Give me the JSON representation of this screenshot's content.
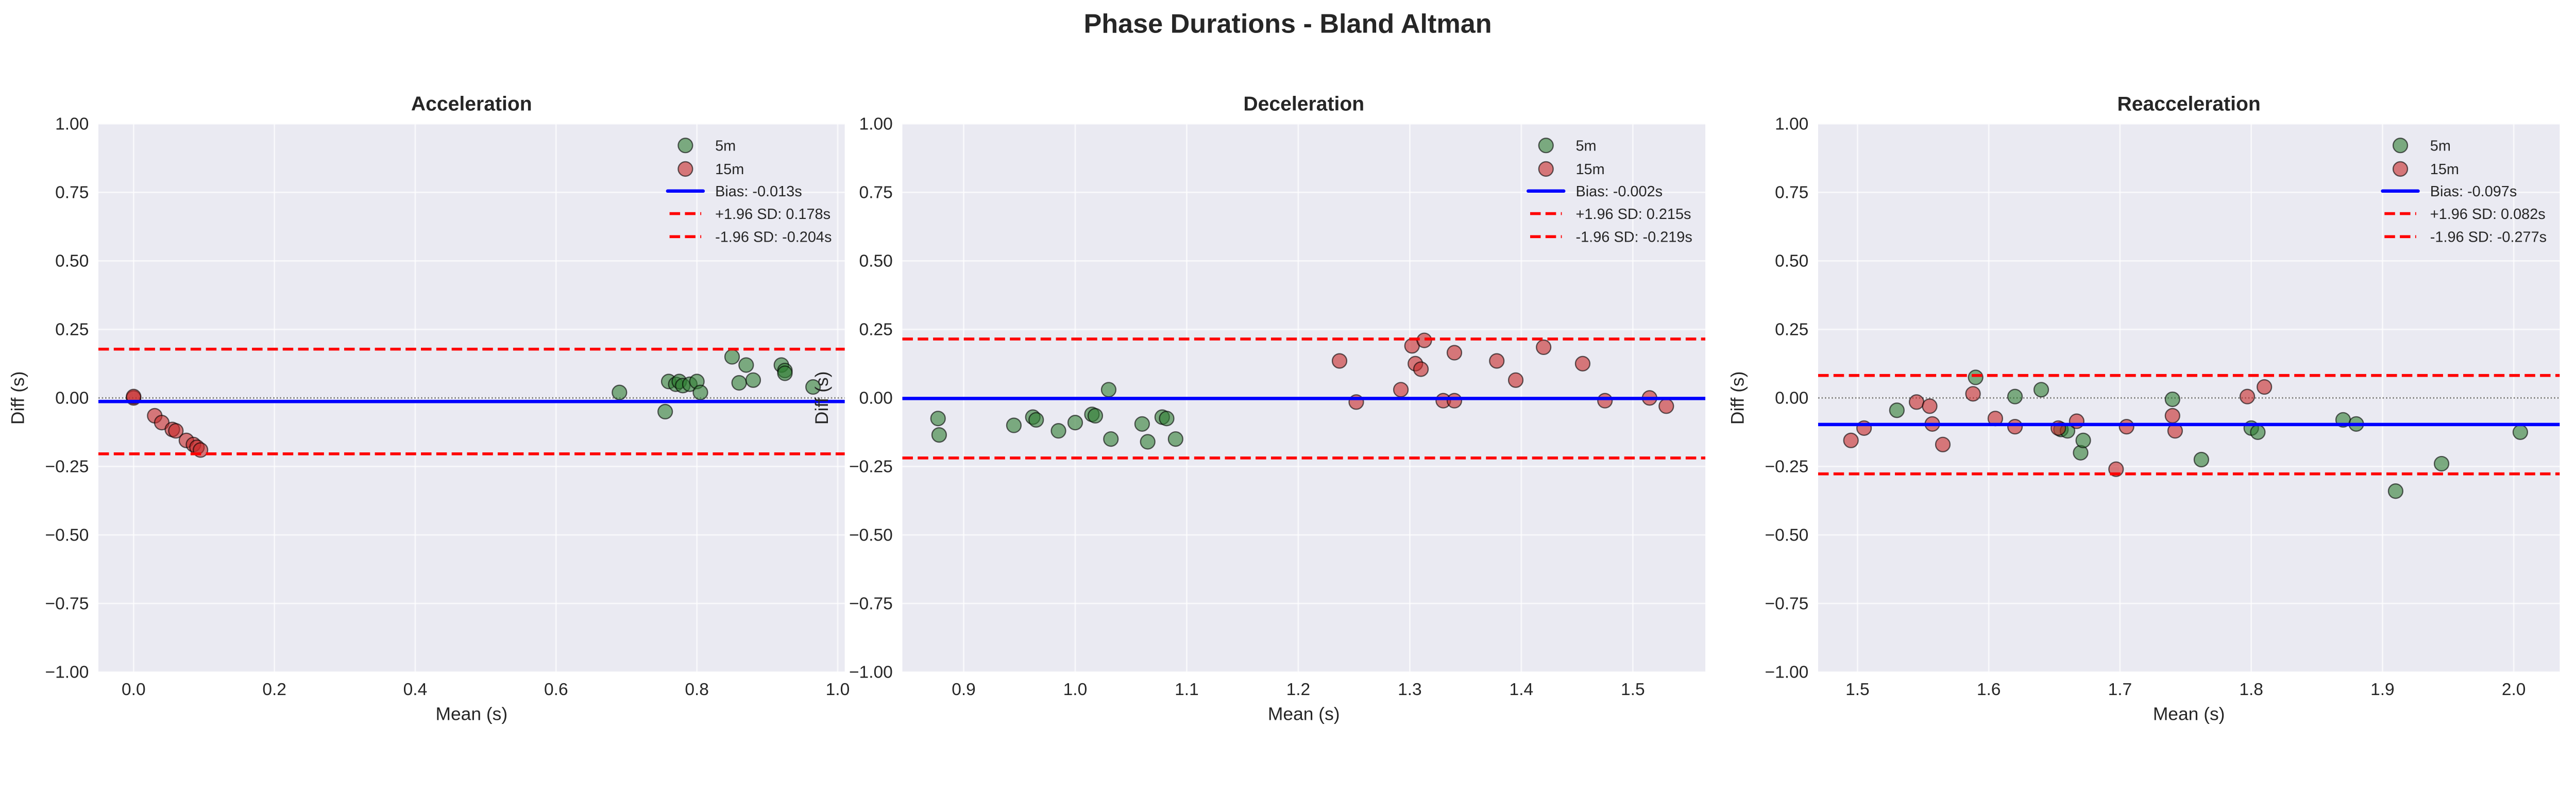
{
  "suptitle": "Phase Durations - Bland Altman",
  "colors": {
    "5m": "#2e7d32",
    "15m": "#c62828",
    "bias": "#0000ff",
    "loa": "#ff0000",
    "zero": "#808080",
    "bg": "#eaeaf2"
  },
  "chart_data": [
    {
      "type": "scatter",
      "title": "Acceleration",
      "xlabel": "Mean (s)",
      "ylabel": "Diff (s)",
      "xlim": [
        -0.05,
        1.01
      ],
      "ylim": [
        -1.0,
        1.0
      ],
      "xticks": [
        0.0,
        0.2,
        0.4,
        0.6,
        0.8,
        1.0
      ],
      "xtick_labels": [
        "0.0",
        "0.2",
        "0.4",
        "0.6",
        "0.8",
        "1.0"
      ],
      "yticks": [
        -1.0,
        -0.75,
        -0.5,
        -0.25,
        0,
        0.25,
        0.5,
        0.75,
        1.0
      ],
      "ytick_labels": [
        "−1.00",
        "−0.75",
        "−0.50",
        "−0.25",
        "0.00",
        "0.25",
        "0.50",
        "0.75",
        "1.00"
      ],
      "grid": true,
      "legend_position": "top-right",
      "bias": -0.013,
      "upper_loa": 0.178,
      "lower_loa": -0.204,
      "legend": [
        "5m",
        "15m",
        "Bias: -0.013s",
        "+1.96 SD: 0.178s",
        "-1.96 SD: -0.204s"
      ],
      "series": [
        {
          "name": "5m",
          "points": [
            [
              0.69,
              0.02
            ],
            [
              0.755,
              -0.05
            ],
            [
              0.76,
              0.06
            ],
            [
              0.77,
              0.05
            ],
            [
              0.775,
              0.06
            ],
            [
              0.78,
              0.045
            ],
            [
              0.79,
              0.05
            ],
            [
              0.8,
              0.06
            ],
            [
              0.805,
              0.02
            ],
            [
              0.85,
              0.15
            ],
            [
              0.86,
              0.055
            ],
            [
              0.87,
              0.12
            ],
            [
              0.88,
              0.065
            ],
            [
              0.92,
              0.12
            ],
            [
              0.925,
              0.1
            ],
            [
              0.925,
              0.09
            ],
            [
              0.965,
              0.04
            ]
          ]
        },
        {
          "name": "15m",
          "points": [
            [
              0.0,
              0.0
            ],
            [
              0.0,
              0.005
            ],
            [
              0.03,
              -0.065
            ],
            [
              0.04,
              -0.09
            ],
            [
              0.055,
              -0.115
            ],
            [
              0.06,
              -0.12
            ],
            [
              0.075,
              -0.155
            ],
            [
              0.085,
              -0.17
            ],
            [
              0.09,
              -0.18
            ],
            [
              0.095,
              -0.19
            ]
          ]
        }
      ]
    },
    {
      "type": "scatter",
      "title": "Deceleration",
      "xlabel": "Mean (s)",
      "ylabel": "Diff (s)",
      "xlim": [
        0.845,
        1.565
      ],
      "ylim": [
        -1.0,
        1.0
      ],
      "xticks": [
        0.9,
        1.0,
        1.1,
        1.2,
        1.3,
        1.4,
        1.5
      ],
      "xtick_labels": [
        "0.9",
        "1.0",
        "1.1",
        "1.2",
        "1.3",
        "1.4",
        "1.5"
      ],
      "yticks": [
        -1.0,
        -0.75,
        -0.5,
        -0.25,
        0,
        0.25,
        0.5,
        0.75,
        1.0
      ],
      "ytick_labels": [
        "−1.00",
        "−0.75",
        "−0.50",
        "−0.25",
        "0.00",
        "0.25",
        "0.50",
        "0.75",
        "1.00"
      ],
      "grid": true,
      "legend_position": "top-right",
      "bias": -0.002,
      "upper_loa": 0.215,
      "lower_loa": -0.219,
      "legend": [
        "5m",
        "15m",
        "Bias: -0.002s",
        "+1.96 SD: 0.215s",
        "-1.96 SD: -0.219s"
      ],
      "series": [
        {
          "name": "5m",
          "points": [
            [
              0.877,
              -0.075
            ],
            [
              0.878,
              -0.135
            ],
            [
              0.945,
              -0.1
            ],
            [
              0.962,
              -0.07
            ],
            [
              0.965,
              -0.08
            ],
            [
              0.985,
              -0.12
            ],
            [
              1.0,
              -0.09
            ],
            [
              1.015,
              -0.06
            ],
            [
              1.018,
              -0.065
            ],
            [
              1.03,
              0.03
            ],
            [
              1.032,
              -0.15
            ],
            [
              1.06,
              -0.095
            ],
            [
              1.065,
              -0.16
            ],
            [
              1.078,
              -0.07
            ],
            [
              1.082,
              -0.075
            ],
            [
              1.09,
              -0.15
            ]
          ]
        },
        {
          "name": "15m",
          "points": [
            [
              1.237,
              0.135
            ],
            [
              1.252,
              -0.015
            ],
            [
              1.292,
              0.03
            ],
            [
              1.302,
              0.19
            ],
            [
              1.305,
              0.125
            ],
            [
              1.31,
              0.105
            ],
            [
              1.313,
              0.21
            ],
            [
              1.34,
              0.165
            ],
            [
              1.33,
              -0.01
            ],
            [
              1.34,
              -0.01
            ],
            [
              1.378,
              0.135
            ],
            [
              1.395,
              0.065
            ],
            [
              1.42,
              0.185
            ],
            [
              1.455,
              0.125
            ],
            [
              1.475,
              -0.01
            ],
            [
              1.515,
              0.0
            ],
            [
              1.53,
              -0.03
            ]
          ]
        }
      ]
    },
    {
      "type": "scatter",
      "title": "Reacceleration",
      "xlabel": "Mean (s)",
      "ylabel": "Diff (s)",
      "xlim": [
        1.47,
        2.035
      ],
      "ylim": [
        -1.0,
        1.0
      ],
      "xticks": [
        1.5,
        1.6,
        1.7,
        1.8,
        1.9,
        2.0
      ],
      "xtick_labels": [
        "1.5",
        "1.6",
        "1.7",
        "1.8",
        "1.9",
        "2.0"
      ],
      "yticks": [
        -1.0,
        -0.75,
        -0.5,
        -0.25,
        0,
        0.25,
        0.5,
        0.75,
        1.0
      ],
      "ytick_labels": [
        "−1.00",
        "−0.75",
        "−0.50",
        "−0.25",
        "0.00",
        "0.25",
        "0.50",
        "0.75",
        "1.00"
      ],
      "grid": true,
      "legend_position": "top-right",
      "bias": -0.097,
      "upper_loa": 0.082,
      "lower_loa": -0.277,
      "legend": [
        "5m",
        "15m",
        "Bias: -0.097s",
        "+1.96 SD: 0.082s",
        "-1.96 SD: -0.277s"
      ],
      "series": [
        {
          "name": "5m",
          "points": [
            [
              1.53,
              -0.045
            ],
            [
              1.59,
              0.075
            ],
            [
              1.62,
              0.005
            ],
            [
              1.64,
              0.03
            ],
            [
              1.655,
              -0.115
            ],
            [
              1.66,
              -0.12
            ],
            [
              1.67,
              -0.2
            ],
            [
              1.672,
              -0.155
            ],
            [
              1.74,
              -0.005
            ],
            [
              1.762,
              -0.225
            ],
            [
              1.8,
              -0.11
            ],
            [
              1.805,
              -0.125
            ],
            [
              1.87,
              -0.08
            ],
            [
              1.88,
              -0.095
            ],
            [
              1.91,
              -0.34
            ],
            [
              1.945,
              -0.24
            ],
            [
              2.005,
              -0.125
            ]
          ]
        },
        {
          "name": "15m",
          "points": [
            [
              1.495,
              -0.155
            ],
            [
              1.505,
              -0.11
            ],
            [
              1.545,
              -0.015
            ],
            [
              1.555,
              -0.03
            ],
            [
              1.557,
              -0.095
            ],
            [
              1.565,
              -0.17
            ],
            [
              1.588,
              0.015
            ],
            [
              1.605,
              -0.075
            ],
            [
              1.62,
              -0.105
            ],
            [
              1.653,
              -0.11
            ],
            [
              1.667,
              -0.085
            ],
            [
              1.697,
              -0.26
            ],
            [
              1.705,
              -0.105
            ],
            [
              1.74,
              -0.065
            ],
            [
              1.742,
              -0.12
            ],
            [
              1.797,
              0.005
            ],
            [
              1.81,
              0.04
            ]
          ]
        }
      ]
    }
  ]
}
